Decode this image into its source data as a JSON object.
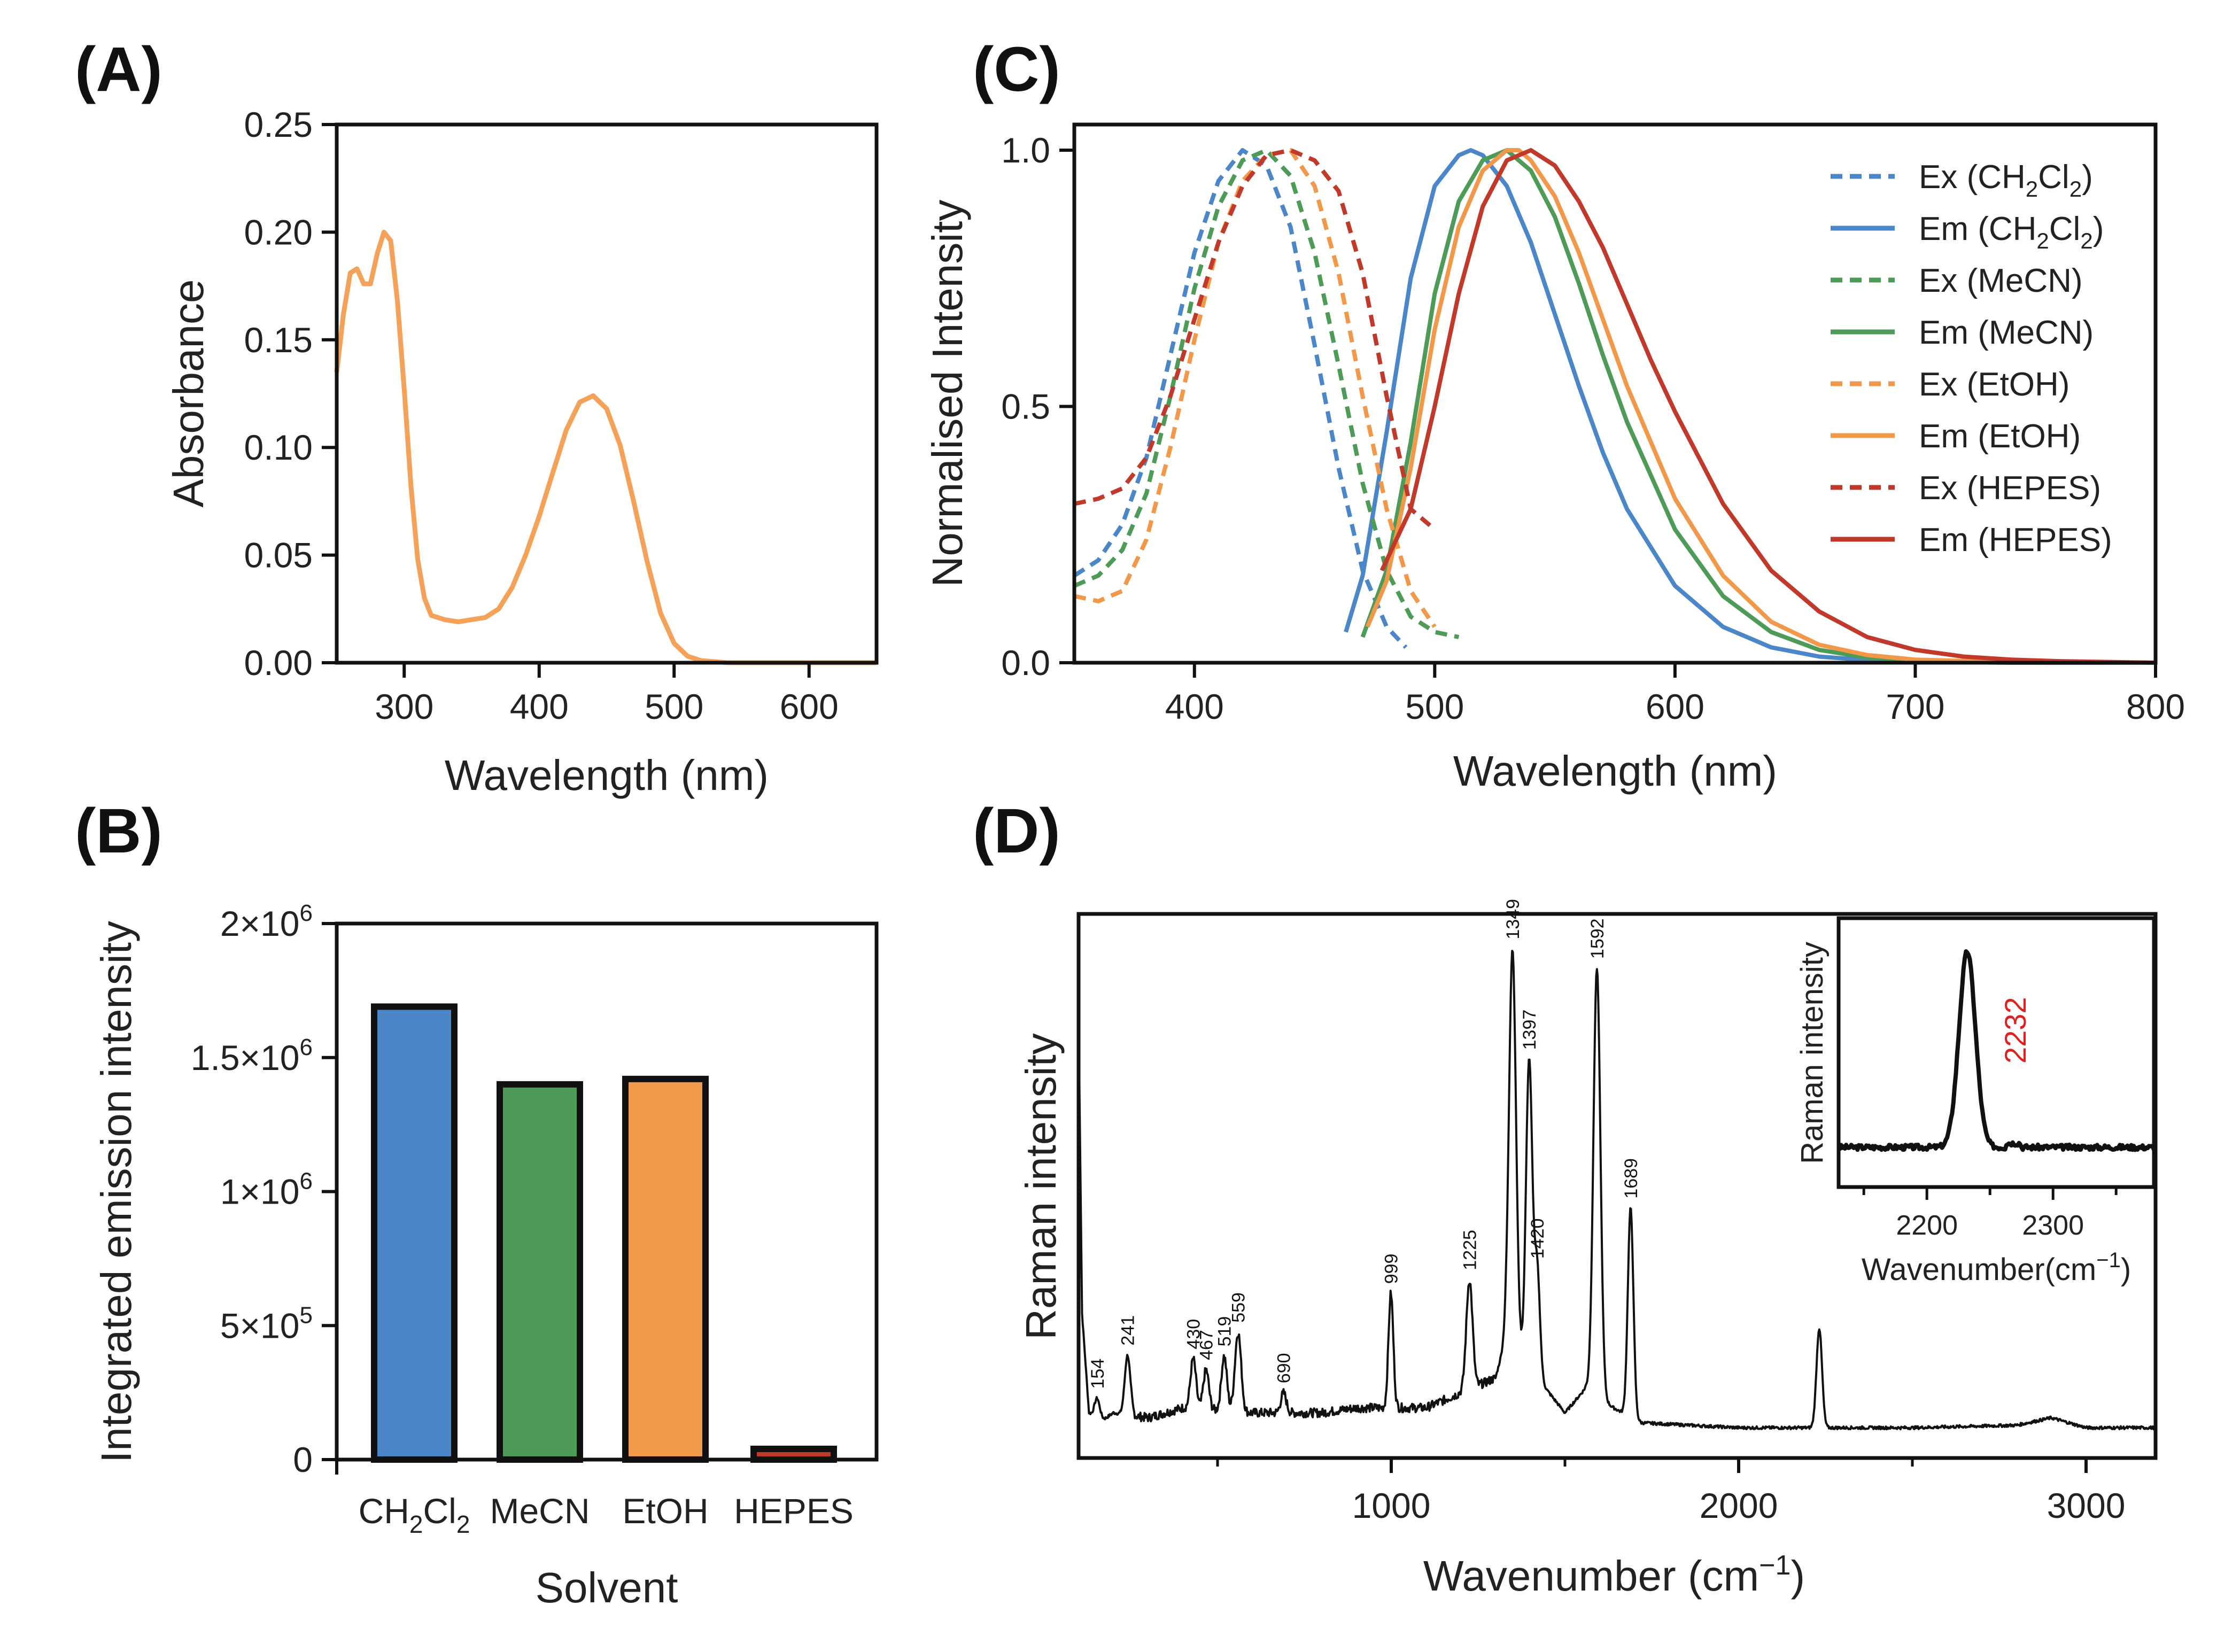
{
  "chart_data": [
    {
      "panel": "(A)",
      "type": "line",
      "xlabel": "Wavelength (nm)",
      "ylabel": "Absorbance",
      "xlim": [
        250,
        650
      ],
      "ylim": [
        0,
        0.25
      ],
      "xticks": [
        "300",
        "400",
        "500",
        "600"
      ],
      "yticks": [
        "0.00",
        "0.05",
        "0.10",
        "0.15",
        "0.20",
        "0.25"
      ],
      "grid": false,
      "series": [
        {
          "name": "Absorbance",
          "color": "#F4A259",
          "x": [
            250,
            255,
            260,
            265,
            270,
            275,
            280,
            285,
            290,
            295,
            300,
            305,
            310,
            315,
            320,
            330,
            340,
            350,
            360,
            370,
            380,
            390,
            400,
            410,
            420,
            430,
            440,
            450,
            460,
            470,
            480,
            490,
            500,
            510,
            520,
            540,
            560,
            580,
            600,
            620,
            650
          ],
          "y": [
            0.135,
            0.162,
            0.181,
            0.183,
            0.176,
            0.176,
            0.19,
            0.2,
            0.196,
            0.168,
            0.127,
            0.082,
            0.048,
            0.03,
            0.022,
            0.02,
            0.019,
            0.02,
            0.021,
            0.025,
            0.035,
            0.05,
            0.068,
            0.088,
            0.108,
            0.121,
            0.124,
            0.118,
            0.101,
            0.075,
            0.047,
            0.023,
            0.009,
            0.003,
            0.001,
            0.0,
            0.0,
            0.0,
            0.0,
            0.0,
            0.0
          ]
        }
      ]
    },
    {
      "panel": "(B)",
      "type": "bar",
      "xlabel": "Solvent",
      "ylabel": "Integrated emission intensity",
      "ylim": [
        0,
        2000000
      ],
      "categories": [
        "CH2Cl2",
        "MeCN",
        "EtOH",
        "HEPES"
      ],
      "category_labels": [
        {
          "main": "CH",
          "sub1": "2",
          "mid": "Cl",
          "sub2": "2"
        },
        {
          "main": "MeCN"
        },
        {
          "main": "EtOH"
        },
        {
          "main": "HEPES"
        }
      ],
      "values": [
        1690000,
        1400000,
        1420000,
        40000
      ],
      "colors": [
        "#4A86C8",
        "#4E9A57",
        "#F2984A",
        "#C0392B"
      ],
      "yticks": [
        {
          "value": 0,
          "label": "0"
        },
        {
          "value": 500000,
          "label": "5×10",
          "exp": "5"
        },
        {
          "value": 1000000,
          "label": "1×10",
          "exp": "6"
        },
        {
          "value": 1500000,
          "label": "1.5×10",
          "exp": "6"
        },
        {
          "value": 2000000,
          "label": "2×10",
          "exp": "6"
        }
      ]
    },
    {
      "panel": "(C)",
      "type": "line",
      "xlabel": "Wavelength (nm)",
      "ylabel": "Normalised Intensity",
      "xlim": [
        350,
        800
      ],
      "ylim": [
        0,
        1.05
      ],
      "xticks": [
        "400",
        "500",
        "600",
        "700",
        "800"
      ],
      "yticks": [
        "0.0",
        "0.5",
        "1.0"
      ],
      "legend_position": "top-right",
      "series": [
        {
          "name": "Ex (CH2Cl2)",
          "label_main": "Ex (CH",
          "label_sub1": "2",
          "label_mid": "Cl",
          "label_sub2": "2",
          "label_end": ")",
          "color": "#4A86C8",
          "dash": true,
          "x": [
            350,
            360,
            370,
            380,
            390,
            400,
            410,
            420,
            430,
            440,
            450,
            460,
            470,
            480,
            488
          ],
          "y": [
            0.17,
            0.2,
            0.27,
            0.4,
            0.6,
            0.8,
            0.94,
            1.0,
            0.97,
            0.85,
            0.62,
            0.38,
            0.18,
            0.07,
            0.03
          ]
        },
        {
          "name": "Em (CH2Cl2)",
          "label_main": "Em (CH",
          "label_sub1": "2",
          "label_mid": "Cl",
          "label_sub2": "2",
          "label_end": ")",
          "color": "#4A86C8",
          "dash": false,
          "x": [
            463,
            470,
            480,
            490,
            500,
            510,
            515,
            520,
            530,
            540,
            550,
            560,
            570,
            580,
            600,
            620,
            640,
            660,
            680,
            700,
            740,
            800
          ],
          "y": [
            0.06,
            0.17,
            0.45,
            0.75,
            0.93,
            0.99,
            1.0,
            0.99,
            0.93,
            0.82,
            0.68,
            0.54,
            0.41,
            0.3,
            0.15,
            0.07,
            0.03,
            0.012,
            0.005,
            0.002,
            0.0,
            0.0
          ]
        },
        {
          "name": "Ex (MeCN)",
          "label_main": "Ex (MeCN)",
          "color": "#4E9A57",
          "dash": true,
          "x": [
            350,
            360,
            370,
            380,
            390,
            400,
            410,
            420,
            430,
            440,
            450,
            460,
            470,
            480,
            490,
            500,
            510
          ],
          "y": [
            0.15,
            0.17,
            0.22,
            0.33,
            0.52,
            0.73,
            0.89,
            0.98,
            1.0,
            0.95,
            0.8,
            0.58,
            0.35,
            0.18,
            0.09,
            0.06,
            0.05
          ]
        },
        {
          "name": "Em (MeCN)",
          "label_main": "Em (MeCN)",
          "color": "#4E9A57",
          "dash": false,
          "x": [
            470,
            480,
            490,
            500,
            510,
            520,
            530,
            540,
            550,
            560,
            570,
            580,
            600,
            620,
            640,
            660,
            680,
            700,
            740,
            800
          ],
          "y": [
            0.05,
            0.18,
            0.43,
            0.72,
            0.9,
            0.98,
            1.0,
            0.96,
            0.87,
            0.74,
            0.6,
            0.47,
            0.26,
            0.13,
            0.06,
            0.025,
            0.01,
            0.004,
            0.001,
            0.0
          ]
        },
        {
          "name": "Ex (EtOH)",
          "label_main": "Ex (EtOH)",
          "color": "#F2984A",
          "dash": true,
          "x": [
            350,
            360,
            370,
            380,
            390,
            400,
            410,
            420,
            430,
            440,
            450,
            460,
            470,
            480,
            490,
            500
          ],
          "y": [
            0.13,
            0.12,
            0.14,
            0.24,
            0.42,
            0.63,
            0.82,
            0.94,
            0.99,
            1.0,
            0.93,
            0.76,
            0.52,
            0.3,
            0.14,
            0.07
          ]
        },
        {
          "name": "Em (EtOH)",
          "label_main": "Em (EtOH)",
          "color": "#F2984A",
          "dash": false,
          "x": [
            472,
            480,
            490,
            500,
            510,
            520,
            530,
            535,
            540,
            550,
            560,
            570,
            580,
            600,
            620,
            640,
            660,
            680,
            700,
            740,
            800
          ],
          "y": [
            0.07,
            0.16,
            0.38,
            0.65,
            0.85,
            0.96,
            1.0,
            1.0,
            0.98,
            0.91,
            0.8,
            0.67,
            0.54,
            0.32,
            0.17,
            0.08,
            0.035,
            0.015,
            0.006,
            0.001,
            0.0
          ]
        },
        {
          "name": "Ex (HEPES)",
          "label_main": "Ex (HEPES)",
          "color": "#C0392B",
          "dash": true,
          "x": [
            350,
            360,
            370,
            380,
            390,
            400,
            410,
            420,
            430,
            440,
            450,
            460,
            470,
            480,
            490,
            500
          ],
          "y": [
            0.31,
            0.32,
            0.34,
            0.4,
            0.52,
            0.67,
            0.82,
            0.93,
            0.99,
            1.0,
            0.98,
            0.92,
            0.76,
            0.52,
            0.3,
            0.26
          ]
        },
        {
          "name": "Em (HEPES)",
          "label_main": "Em (HEPES)",
          "color": "#C0392B",
          "dash": false,
          "x": [
            478,
            490,
            500,
            510,
            520,
            530,
            540,
            550,
            560,
            570,
            580,
            590,
            600,
            620,
            640,
            660,
            680,
            700,
            720,
            740,
            760,
            800
          ],
          "y": [
            0.18,
            0.3,
            0.5,
            0.72,
            0.89,
            0.98,
            1.0,
            0.97,
            0.9,
            0.81,
            0.7,
            0.59,
            0.49,
            0.31,
            0.18,
            0.1,
            0.05,
            0.025,
            0.012,
            0.006,
            0.003,
            0.0
          ]
        }
      ]
    },
    {
      "panel": "(D)",
      "type": "line",
      "xlabel_main": "Wavenumber",
      "xlabel_unit": "(cm",
      "xlabel_exp": "−1",
      "xlabel_close": ")",
      "ylabel": "Raman intensity",
      "xlim": [
        100,
        3200
      ],
      "ylim": [
        0,
        1
      ],
      "xticks": [
        "1000",
        "2000",
        "3000"
      ],
      "color": "#111111",
      "baseline": [
        [
          100,
          0.85
        ],
        [
          110,
          0.25
        ],
        [
          130,
          0.05
        ],
        [
          160,
          0.03
        ],
        [
          200,
          0.05
        ],
        [
          300,
          0.04
        ],
        [
          400,
          0.06
        ],
        [
          600,
          0.05
        ],
        [
          800,
          0.05
        ],
        [
          900,
          0.06
        ],
        [
          1100,
          0.06
        ],
        [
          1300,
          0.12
        ],
        [
          1330,
          0.2
        ],
        [
          1500,
          0.05
        ],
        [
          1560,
          0.1
        ],
        [
          1640,
          0.06
        ],
        [
          1720,
          0.03
        ],
        [
          2000,
          0.02
        ],
        [
          2500,
          0.02
        ],
        [
          2800,
          0.025
        ],
        [
          2900,
          0.04
        ],
        [
          3000,
          0.02
        ],
        [
          3200,
          0.02
        ]
      ],
      "peaks": [
        {
          "pos": 154,
          "height": 0.045,
          "width": 8,
          "label": "154"
        },
        {
          "pos": 241,
          "height": 0.12,
          "width": 8,
          "label": "241"
        },
        {
          "pos": 430,
          "height": 0.1,
          "width": 8,
          "label": "430"
        },
        {
          "pos": 467,
          "height": 0.08,
          "width": 8,
          "label": "467"
        },
        {
          "pos": 519,
          "height": 0.11,
          "width": 8,
          "label": "519"
        },
        {
          "pos": 559,
          "height": 0.16,
          "width": 9,
          "label": "559"
        },
        {
          "pos": 690,
          "height": 0.04,
          "width": 8,
          "label": "690"
        },
        {
          "pos": 999,
          "height": 0.23,
          "width": 7,
          "label": "999"
        },
        {
          "pos": 1225,
          "height": 0.22,
          "width": 9,
          "label": "1225"
        },
        {
          "pos": 1349,
          "height": 0.8,
          "width": 10,
          "label": "1349"
        },
        {
          "pos": 1397,
          "height": 0.62,
          "width": 9,
          "label": "1397"
        },
        {
          "pos": 1420,
          "height": 0.22,
          "width": 8,
          "label": "1420"
        },
        {
          "pos": 1592,
          "height": 0.86,
          "width": 10,
          "label": "1592"
        },
        {
          "pos": 1689,
          "height": 0.42,
          "width": 8,
          "label": "1689"
        },
        {
          "pos": 2232,
          "height": 0.2,
          "width": 8,
          "label": ""
        }
      ],
      "inset": {
        "xlabel": "Wavenumber(cm",
        "xlabel_exp": "−1",
        "xlabel_close": ")",
        "ylabel": "Raman intensity",
        "xlim": [
          2130,
          2380
        ],
        "xticks": [
          "2200",
          "2300"
        ],
        "peak_pos": 2232,
        "peak_label": "2232",
        "peak_label_color": "#E02020"
      }
    }
  ]
}
